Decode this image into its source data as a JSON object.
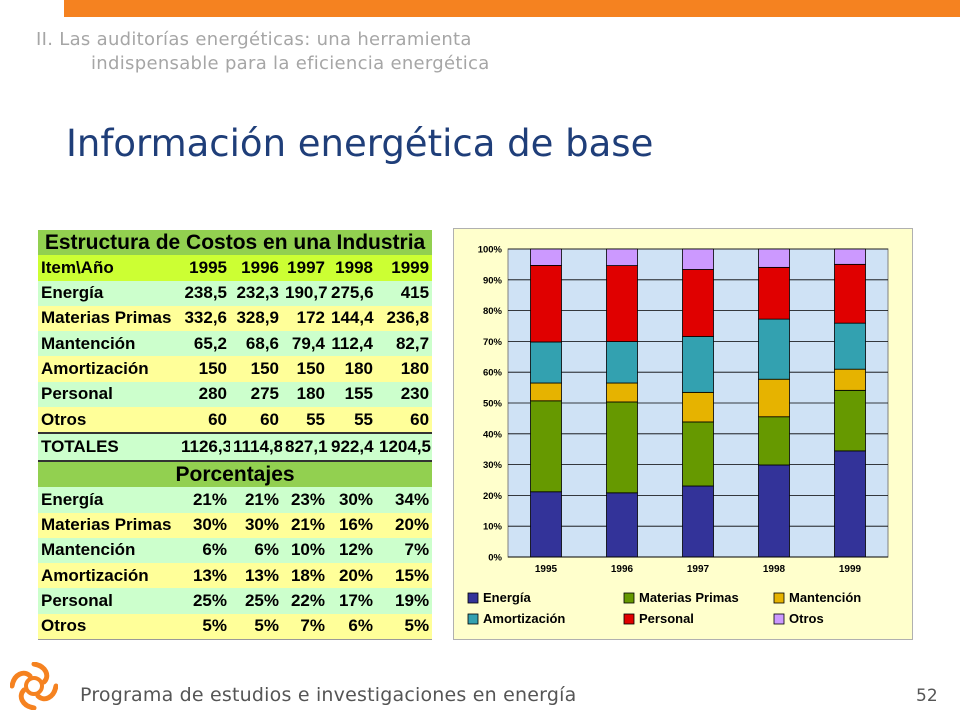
{
  "header": {
    "section_line1": "II. Las auditorías energéticas: una herramienta",
    "section_line2": "indispensable para la eficiencia energética",
    "title": "Información energética de base"
  },
  "table": {
    "title": "Estructura de Costos en una Industria",
    "header_label": "Item\\Año",
    "years": [
      "1995",
      "1996",
      "1997",
      "1998",
      "1999"
    ],
    "cost_rows": [
      {
        "label": "Energía",
        "values": [
          "238,5",
          "232,3",
          "190,7",
          "275,6",
          "415"
        ]
      },
      {
        "label": "Materias Primas",
        "values": [
          "332,6",
          "328,9",
          "172",
          "144,4",
          "236,8"
        ]
      },
      {
        "label": "Mantención",
        "values": [
          "65,2",
          "68,6",
          "79,4",
          "112,4",
          "82,7"
        ]
      },
      {
        "label": "Amortización",
        "values": [
          "150",
          "150",
          "150",
          "180",
          "180"
        ]
      },
      {
        "label": "Personal",
        "values": [
          "280",
          "275",
          "180",
          "155",
          "230"
        ]
      },
      {
        "label": "Otros",
        "values": [
          "60",
          "60",
          "55",
          "55",
          "60"
        ]
      }
    ],
    "total_row": {
      "label": "TOTALES",
      "values": [
        "1126,3",
        "1114,8",
        "827,1",
        "922,4",
        "1204,5"
      ]
    },
    "pct_title": "Porcentajes",
    "pct_rows": [
      {
        "label": "Energía",
        "values": [
          "21%",
          "21%",
          "23%",
          "30%",
          "34%"
        ]
      },
      {
        "label": "Materias Primas",
        "values": [
          "30%",
          "30%",
          "21%",
          "16%",
          "20%"
        ]
      },
      {
        "label": "Mantención",
        "values": [
          "6%",
          "6%",
          "10%",
          "12%",
          "7%"
        ]
      },
      {
        "label": "Amortización",
        "values": [
          "13%",
          "13%",
          "18%",
          "20%",
          "15%"
        ]
      },
      {
        "label": "Personal",
        "values": [
          "25%",
          "25%",
          "22%",
          "17%",
          "19%"
        ]
      },
      {
        "label": "Otros",
        "values": [
          "5%",
          "5%",
          "7%",
          "6%",
          "5%"
        ]
      }
    ]
  },
  "chart_data": {
    "type": "bar",
    "stacked": true,
    "normalized": true,
    "categories": [
      "1995",
      "1996",
      "1997",
      "1998",
      "1999"
    ],
    "series": [
      {
        "name": "Energía",
        "color": "#333399",
        "values": [
          238.5,
          232.3,
          190.7,
          275.6,
          415
        ]
      },
      {
        "name": "Materias Primas",
        "color": "#669900",
        "values": [
          332.6,
          328.9,
          172,
          144.4,
          236.8
        ]
      },
      {
        "name": "Mantención",
        "color": "#e6b300",
        "values": [
          65.2,
          68.6,
          79.4,
          112.4,
          82.7
        ]
      },
      {
        "name": "Amortización",
        "color": "#33a1b0",
        "values": [
          150,
          150,
          150,
          180,
          180
        ]
      },
      {
        "name": "Personal",
        "color": "#e00000",
        "values": [
          280,
          275,
          180,
          155,
          230
        ]
      },
      {
        "name": "Otros",
        "color": "#cc99ff",
        "values": [
          60,
          60,
          55,
          55,
          60
        ]
      }
    ],
    "y_ticks": [
      "0%",
      "10%",
      "20%",
      "30%",
      "40%",
      "50%",
      "60%",
      "70%",
      "80%",
      "90%",
      "100%"
    ],
    "ylim": [
      0,
      100
    ],
    "grid": true,
    "legend_position": "bottom"
  },
  "footer": {
    "text": "Programa de estudios e investigaciones en energía",
    "page_number": "52"
  },
  "colors": {
    "accent": "#f58220",
    "title": "#1f3e79"
  }
}
